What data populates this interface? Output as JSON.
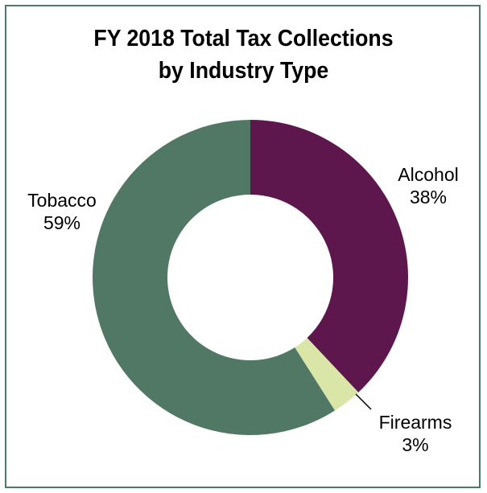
{
  "chart_data": {
    "type": "pie",
    "title_lines": [
      "FY 2018 Total Tax Collections",
      "by Industry Type"
    ],
    "slices": [
      {
        "label": "Alcohol",
        "value": 38,
        "value_label": "38%",
        "color": "#5e174d"
      },
      {
        "label": "Firearms",
        "value": 3,
        "value_label": "3%",
        "color": "#d9e6a8"
      },
      {
        "label": "Tobacco",
        "value": 59,
        "value_label": "59%",
        "color": "#517865"
      }
    ],
    "donut": true,
    "frame_color": "#4f7866",
    "legend": "none"
  }
}
